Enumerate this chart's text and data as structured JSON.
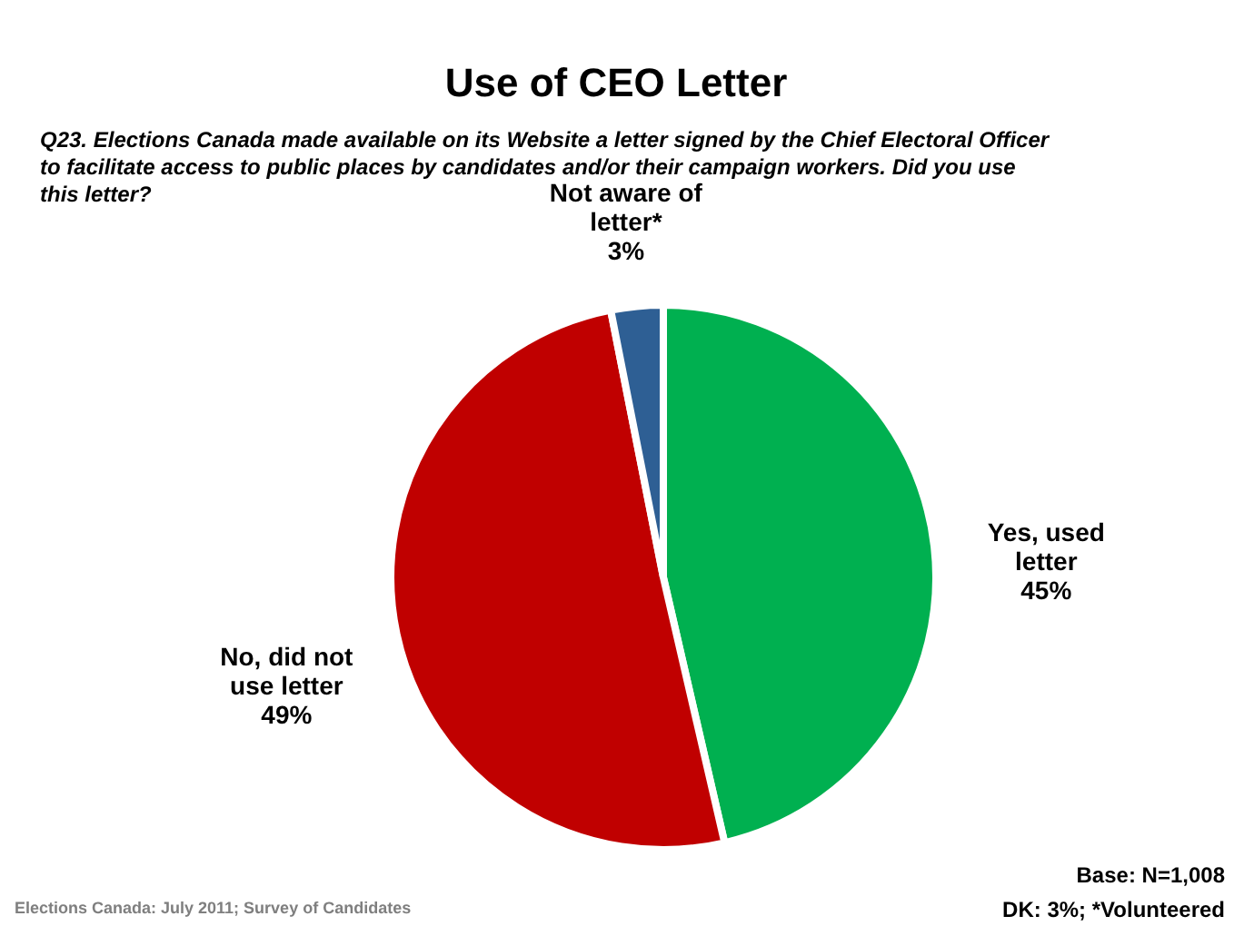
{
  "chart_data": {
    "type": "pie",
    "title": "Use of CEO Letter",
    "subtitle": "Q23. Elections Canada made available on its Website a letter signed by the Chief Electoral Officer to facilitate access to public places by candidates and/or their campaign workers. Did you use this letter?",
    "categories": [
      "Yes, used letter",
      "No, did not use letter",
      "Not aware of letter*"
    ],
    "values": [
      45,
      49,
      3
    ],
    "value_labels": [
      "45%",
      "49%",
      "3%"
    ],
    "colors": [
      "#00b050",
      "#c00000",
      "#2e5f94"
    ],
    "annotations": [
      "Elections Canada: July 2011; Survey of Candidates",
      "Base: N=1,008",
      "DK: 3%; *Volunteered"
    ]
  }
}
